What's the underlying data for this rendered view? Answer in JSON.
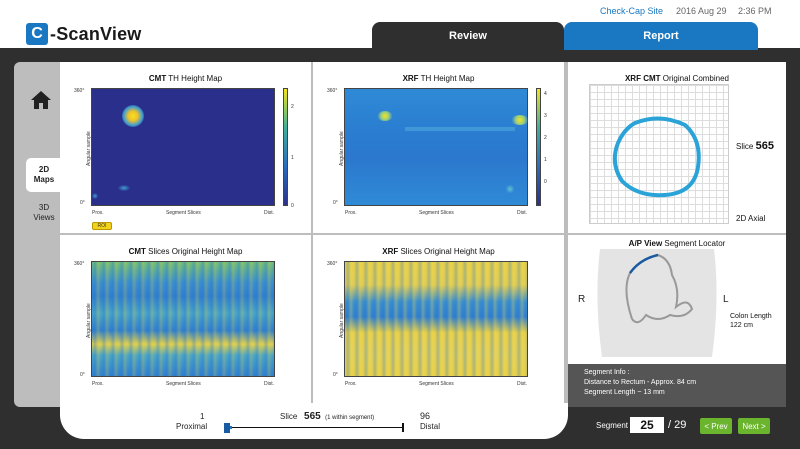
{
  "app": {
    "logo_letter": "C",
    "logo_text": "-ScanView"
  },
  "header": {
    "site_link": "Check-Cap Site",
    "date": "2016 Aug 29",
    "time": "2:36 PM"
  },
  "tabs": [
    {
      "label": "Review",
      "active": true
    },
    {
      "label": "Report",
      "active": false
    }
  ],
  "rail": {
    "maps_2d": "2D\nMaps",
    "views_3d": "3D\nViews"
  },
  "panels": {
    "cmt_th": {
      "title_bold": "CMT",
      "title_rest": " TH Height Map",
      "y_top": "360°",
      "y_bot": "0°",
      "y_axis": "Angular sample",
      "x_left": "Prox.",
      "x_mid": "Segment Slices",
      "x_right": "Dist.",
      "cbar_ticks": [
        "2",
        "1",
        "0"
      ],
      "roi": "ROI"
    },
    "xrf_th": {
      "title_bold": "XRF",
      "title_rest": " TH Height Map",
      "y_top": "360°",
      "y_bot": "0°",
      "y_axis": "Angular sample",
      "x_left": "Prox.",
      "x_mid": "Segment Slices",
      "x_right": "Dist.",
      "cbar_ticks": [
        "4",
        "3",
        "2",
        "1",
        "0"
      ]
    },
    "cmt_slices": {
      "title_bold": "CMT",
      "title_rest": " Slices Original Height Map",
      "y_top": "360°",
      "y_bot": "0°",
      "y_axis": "Angular sample",
      "x_left": "Prox.",
      "x_mid": "Segment Slices",
      "x_right": "Dist."
    },
    "xrf_slices": {
      "title_bold": "XRF",
      "title_rest": " Slices Original Height Map",
      "y_top": "360°",
      "y_bot": "0°",
      "y_axis": "Angular sample",
      "x_left": "Prox.",
      "x_mid": "Segment Slices",
      "x_right": "Dist."
    },
    "combined": {
      "title_bold": "XRF CMT",
      "title_rest": " Original Combined",
      "slice_label": "Slice",
      "slice_value": "565",
      "view_label": "2D Axial"
    },
    "locator": {
      "title_bold": "A/P View",
      "title_rest": " Segment Locator",
      "r": "R",
      "l": "L",
      "colon_len_label": "Colon Length",
      "colon_len_value": "122 cm",
      "info_title": "Segment Info :",
      "info_distance": "Distance to Rectum - Approx. 84 cm",
      "info_length": "Segment Length ~ 13 mm"
    }
  },
  "slider": {
    "prox_num": "1",
    "prox_label": "Proximal",
    "slice_label": "Slice",
    "slice_value": "565",
    "within": "(1 within segment)",
    "dist_num": "96",
    "dist_label": "Distal"
  },
  "segment": {
    "label": "Segment",
    "value": "25",
    "total": "/ 29",
    "prev": "< Prev",
    "next": "Next >"
  },
  "colors": {
    "accent": "#1a78c2",
    "frame": "#2f2f2f",
    "nav_green": "#6bb42d",
    "heat_low": "#2b2f8c",
    "heat_high": "#f3e21e"
  }
}
